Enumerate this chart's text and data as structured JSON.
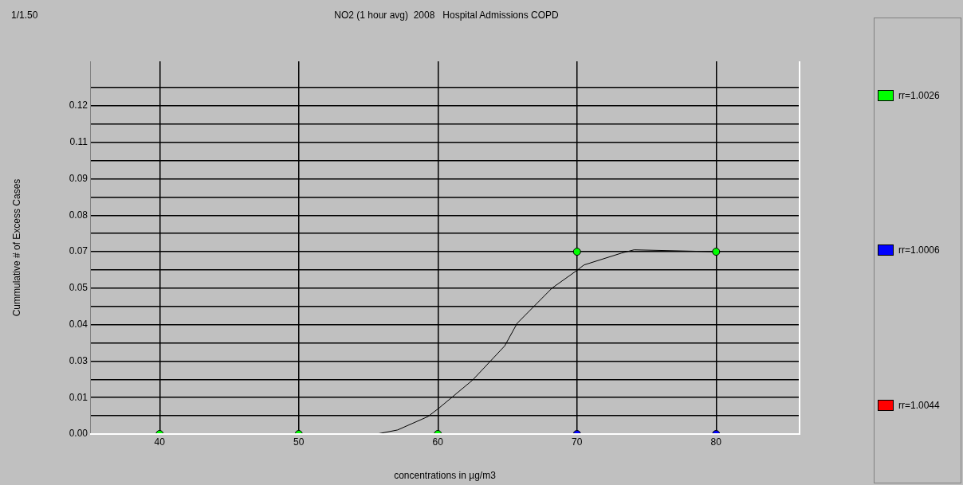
{
  "chart_data": {
    "type": "scatter",
    "title": "NO2 (1 hour avg)  2008   Hospital Admissions COPD",
    "xlabel": "concentrations in µg/m3",
    "ylabel": "Cummulative # of Excess Cases",
    "annotations": [
      "1/1.50"
    ],
    "x": [
      40,
      50,
      60,
      70,
      80
    ],
    "series": [
      {
        "name": "rr=1.0026",
        "color": "#00ff00",
        "values": [
          0,
          0,
          0,
          0.0675,
          0.0675
        ]
      },
      {
        "name": "rr=1.0006",
        "color": "#0000ff",
        "values": [
          null,
          null,
          null,
          0,
          0
        ]
      },
      {
        "name": "rr=1.0044",
        "color": "#ff0000",
        "values": [
          null,
          null,
          null,
          null,
          null
        ]
      },
      {
        "type": "line",
        "marker": "none",
        "color": "#000000",
        "x": [
          40,
          50,
          55.6,
          57.1,
          59.3,
          60.1,
          62.5,
          64.8,
          65.7,
          68.2,
          70,
          70.5,
          73.2,
          74.1,
          80
        ],
        "values": [
          0,
          0,
          0,
          0.0015,
          0.0065,
          0.0097,
          0.02,
          0.0326,
          0.041,
          0.054,
          0.0606,
          0.0626,
          0.067,
          0.0682,
          0.0675
        ]
      }
    ],
    "xlim": [
      35,
      86
    ],
    "xticks": [
      40,
      50,
      60,
      70,
      80
    ],
    "ylim": [
      0,
      0.138
    ],
    "yticks": [
      {
        "value": 0,
        "label": "0.00"
      },
      {
        "value": 0.00675,
        "label": null
      },
      {
        "value": 0.0135,
        "label": "0.01"
      },
      {
        "value": 0.02025,
        "label": null
      },
      {
        "value": 0.027,
        "label": "0.03"
      },
      {
        "value": 0.03375,
        "label": null
      },
      {
        "value": 0.0405,
        "label": "0.04"
      },
      {
        "value": 0.04725,
        "label": null
      },
      {
        "value": 0.054,
        "label": "0.05"
      },
      {
        "value": 0.06075,
        "label": null
      },
      {
        "value": 0.0675,
        "label": "0.07"
      },
      {
        "value": 0.07425,
        "label": null
      },
      {
        "value": 0.081,
        "label": "0.08"
      },
      {
        "value": 0.08775,
        "label": null
      },
      {
        "value": 0.0945,
        "label": "0.09"
      },
      {
        "value": 0.10125,
        "label": null
      },
      {
        "value": 0.108,
        "label": "0.11"
      },
      {
        "value": 0.11475,
        "label": null
      },
      {
        "value": 0.1215,
        "label": "0.12"
      },
      {
        "value": 0.12825,
        "label": null
      }
    ],
    "grid": true,
    "legend": "right",
    "marker": "circle"
  }
}
